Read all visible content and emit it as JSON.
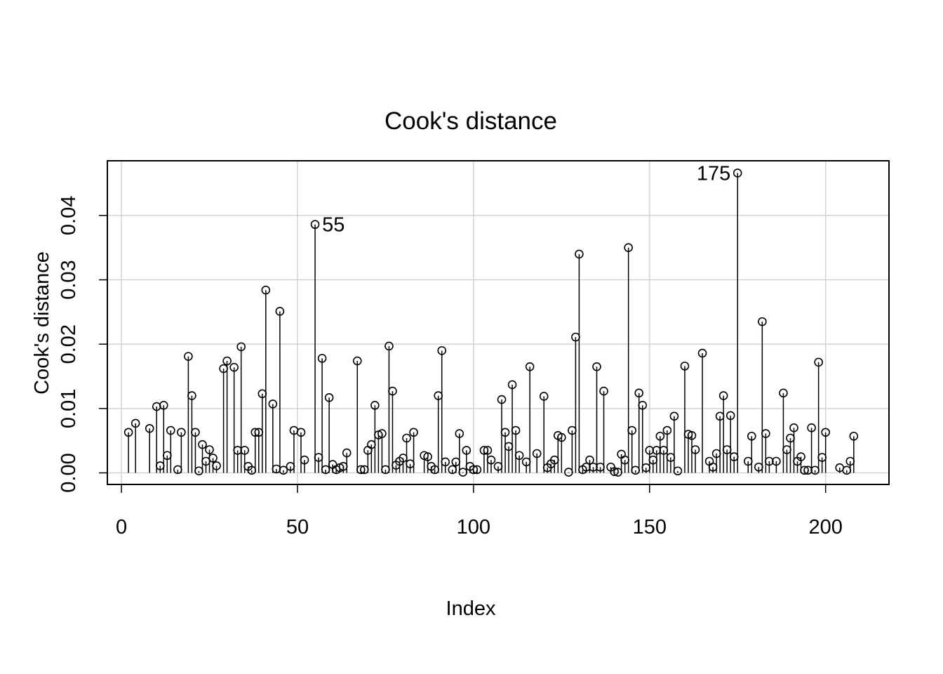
{
  "chart_data": {
    "type": "scatter",
    "style": "stem",
    "title": "Cook's distance",
    "xlabel": "Index",
    "ylabel": "Cook's distance",
    "xlim": [
      -4,
      218
    ],
    "ylim": [
      -0.0018,
      0.0485
    ],
    "xticks": [
      0,
      50,
      100,
      150,
      200
    ],
    "yticks": [
      0.0,
      0.01,
      0.02,
      0.03,
      0.04
    ],
    "ytick_labels": [
      "0.00",
      "0.01",
      "0.02",
      "0.03",
      "0.04"
    ],
    "grid": true,
    "points": [
      [
        2,
        0.0063
      ],
      [
        4,
        0.0077
      ],
      [
        8,
        0.0069
      ],
      [
        10,
        0.0103
      ],
      [
        11,
        0.0011
      ],
      [
        12,
        0.0105
      ],
      [
        13,
        0.0027
      ],
      [
        14,
        0.0066
      ],
      [
        16,
        0.0005
      ],
      [
        17,
        0.0063
      ],
      [
        19,
        0.0181
      ],
      [
        20,
        0.012
      ],
      [
        21,
        0.0063
      ],
      [
        22,
        0.0003
      ],
      [
        23,
        0.0044
      ],
      [
        24,
        0.0018
      ],
      [
        25,
        0.0036
      ],
      [
        26,
        0.0023
      ],
      [
        27,
        0.0011
      ],
      [
        29,
        0.0162
      ],
      [
        30,
        0.0174
      ],
      [
        32,
        0.0164
      ],
      [
        33,
        0.0035
      ],
      [
        34,
        0.0196
      ],
      [
        35,
        0.0035
      ],
      [
        36,
        0.001
      ],
      [
        37,
        0.0004
      ],
      [
        38,
        0.0063
      ],
      [
        39,
        0.0063
      ],
      [
        40,
        0.0123
      ],
      [
        41,
        0.0284
      ],
      [
        43,
        0.0107
      ],
      [
        44,
        0.0006
      ],
      [
        45,
        0.0251
      ],
      [
        46,
        0.0004
      ],
      [
        48,
        0.001
      ],
      [
        49,
        0.0066
      ],
      [
        51,
        0.0063
      ],
      [
        52,
        0.002
      ],
      [
        55,
        0.0386
      ],
      [
        56,
        0.0024
      ],
      [
        57,
        0.0178
      ],
      [
        58,
        0.0005
      ],
      [
        59,
        0.0117
      ],
      [
        60,
        0.0013
      ],
      [
        61,
        0.0005
      ],
      [
        62,
        0.0008
      ],
      [
        63,
        0.001
      ],
      [
        64,
        0.0031
      ],
      [
        67,
        0.0174
      ],
      [
        68,
        0.0005
      ],
      [
        69,
        0.0005
      ],
      [
        70,
        0.0035
      ],
      [
        71,
        0.0044
      ],
      [
        72,
        0.0105
      ],
      [
        73,
        0.0059
      ],
      [
        74,
        0.0061
      ],
      [
        75,
        0.0005
      ],
      [
        76,
        0.0197
      ],
      [
        77,
        0.0127
      ],
      [
        78,
        0.0012
      ],
      [
        79,
        0.0018
      ],
      [
        80,
        0.0023
      ],
      [
        81,
        0.0054
      ],
      [
        82,
        0.0014
      ],
      [
        83,
        0.0063
      ],
      [
        86,
        0.0027
      ],
      [
        87,
        0.0025
      ],
      [
        88,
        0.001
      ],
      [
        89,
        0.0005
      ],
      [
        90,
        0.012
      ],
      [
        91,
        0.019
      ],
      [
        92,
        0.0017
      ],
      [
        94,
        0.0005
      ],
      [
        95,
        0.0017
      ],
      [
        96,
        0.0061
      ],
      [
        97,
        0.0001
      ],
      [
        98,
        0.0035
      ],
      [
        99,
        0.001
      ],
      [
        100,
        0.0005
      ],
      [
        101,
        0.0005
      ],
      [
        103,
        0.0035
      ],
      [
        104,
        0.0035
      ],
      [
        105,
        0.002
      ],
      [
        107,
        0.001
      ],
      [
        108,
        0.0114
      ],
      [
        109,
        0.0063
      ],
      [
        110,
        0.0041
      ],
      [
        111,
        0.0137
      ],
      [
        112,
        0.0066
      ],
      [
        113,
        0.0027
      ],
      [
        115,
        0.0017
      ],
      [
        116,
        0.0165
      ],
      [
        118,
        0.003
      ],
      [
        120,
        0.0119
      ],
      [
        121,
        0.0008
      ],
      [
        122,
        0.0014
      ],
      [
        123,
        0.002
      ],
      [
        124,
        0.0058
      ],
      [
        125,
        0.0055
      ],
      [
        127,
        0.0001
      ],
      [
        128,
        0.0066
      ],
      [
        129,
        0.0211
      ],
      [
        130,
        0.034
      ],
      [
        131,
        0.0005
      ],
      [
        132,
        0.0009
      ],
      [
        133,
        0.002
      ],
      [
        134,
        0.0009
      ],
      [
        135,
        0.0165
      ],
      [
        136,
        0.0009
      ],
      [
        137,
        0.0127
      ],
      [
        139,
        0.0009
      ],
      [
        140,
        0.0002
      ],
      [
        141,
        0.0001
      ],
      [
        142,
        0.0029
      ],
      [
        143,
        0.002
      ],
      [
        144,
        0.035
      ],
      [
        145,
        0.0066
      ],
      [
        146,
        0.0004
      ],
      [
        147,
        0.0124
      ],
      [
        148,
        0.0105
      ],
      [
        149,
        0.0008
      ],
      [
        150,
        0.0035
      ],
      [
        151,
        0.002
      ],
      [
        152,
        0.0035
      ],
      [
        153,
        0.0057
      ],
      [
        154,
        0.0035
      ],
      [
        155,
        0.0066
      ],
      [
        156,
        0.0024
      ],
      [
        157,
        0.0088
      ],
      [
        158,
        0.0003
      ],
      [
        160,
        0.0166
      ],
      [
        161,
        0.006
      ],
      [
        162,
        0.0058
      ],
      [
        163,
        0.0036
      ],
      [
        165,
        0.0186
      ],
      [
        167,
        0.0018
      ],
      [
        168,
        0.0009
      ],
      [
        169,
        0.003
      ],
      [
        170,
        0.0088
      ],
      [
        171,
        0.012
      ],
      [
        172,
        0.0036
      ],
      [
        173,
        0.0089
      ],
      [
        174,
        0.0025
      ],
      [
        175,
        0.0466
      ],
      [
        178,
        0.0018
      ],
      [
        179,
        0.0057
      ],
      [
        181,
        0.0009
      ],
      [
        182,
        0.0235
      ],
      [
        183,
        0.0061
      ],
      [
        184,
        0.0018
      ],
      [
        186,
        0.0018
      ],
      [
        188,
        0.0124
      ],
      [
        189,
        0.0036
      ],
      [
        190,
        0.0054
      ],
      [
        191,
        0.007
      ],
      [
        192,
        0.0018
      ],
      [
        193,
        0.0025
      ],
      [
        194,
        0.0004
      ],
      [
        195,
        0.0004
      ],
      [
        196,
        0.007
      ],
      [
        197,
        0.0004
      ],
      [
        198,
        0.0172
      ],
      [
        199,
        0.0024
      ],
      [
        200,
        0.0063
      ],
      [
        204,
        0.0008
      ],
      [
        206,
        0.0004
      ],
      [
        207,
        0.0018
      ],
      [
        208,
        0.0057
      ]
    ],
    "annotations": [
      {
        "label": "55",
        "x": 55,
        "y": 0.0386,
        "side": "right"
      },
      {
        "label": "175",
        "x": 175,
        "y": 0.0466,
        "side": "left"
      }
    ]
  }
}
